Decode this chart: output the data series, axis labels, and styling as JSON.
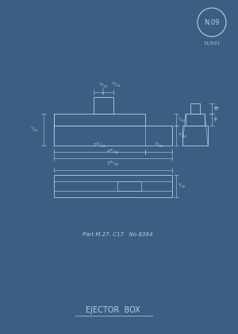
{
  "bg_color": "#3a5f82",
  "line_color": "#b8cfe0",
  "title": "EJECTOR  BOX",
  "part_ref": "Part M.27. C17   No 8364",
  "badge_text": "N.09",
  "badge_sub": "11/3/21",
  "title_fontsize": 7.0,
  "ref_fontsize": 5.0
}
